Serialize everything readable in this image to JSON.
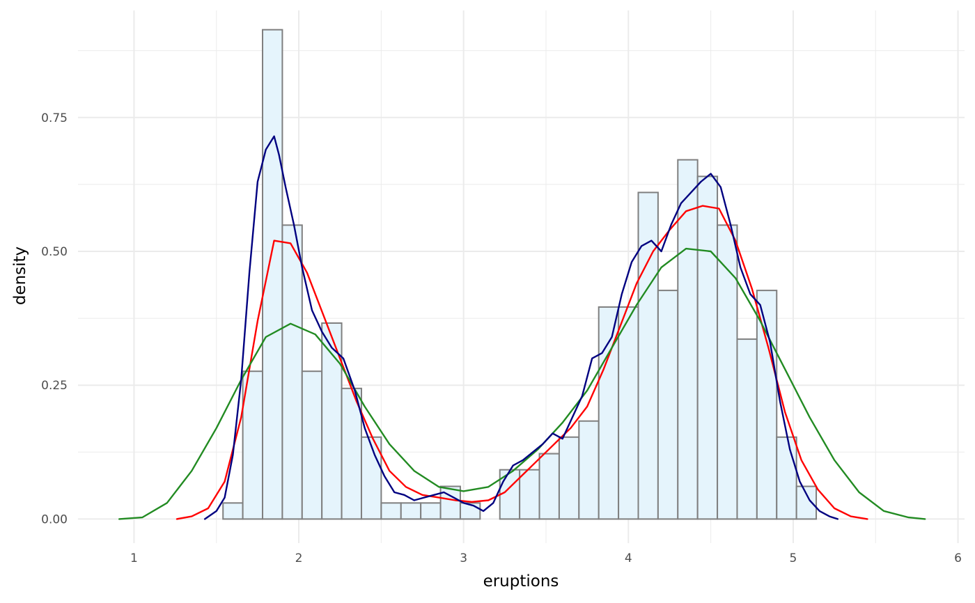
{
  "chart_data": {
    "type": "histogram",
    "xlabel": "eruptions",
    "ylabel": "density",
    "xlim": [
      0.66,
      6.04
    ],
    "ylim": [
      -0.045,
      0.95
    ],
    "x_ticks": [
      1,
      2,
      3,
      4,
      5,
      6
    ],
    "x_tick_labels": [
      "1",
      "2",
      "3",
      "4",
      "5",
      "6"
    ],
    "y_ticks": [
      0,
      0.25,
      0.5,
      0.75
    ],
    "y_tick_labels": [
      "0.00",
      "0.25",
      "0.50",
      "0.75"
    ],
    "grid": true,
    "colors": {
      "bar_fill": "#e5f4fc",
      "bar_stroke": "#7f7f7f",
      "grid": "#ebebeb",
      "red_curve": "#ff0000",
      "green_curve": "#228b22",
      "navy_curve": "#000080"
    },
    "histogram": {
      "bin_width": 0.12,
      "bin_starts": [
        1.54,
        1.66,
        1.78,
        1.9,
        2.02,
        2.14,
        2.26,
        2.38,
        2.5,
        2.62,
        2.74,
        2.86,
        2.98,
        3.1,
        3.22,
        3.34,
        3.46,
        3.58,
        3.7,
        3.82,
        3.94,
        4.06,
        4.18,
        4.3,
        4.42,
        4.54,
        4.66,
        4.78,
        4.9,
        5.02
      ],
      "densities": [
        0.03,
        0.276,
        0.914,
        0.549,
        0.276,
        0.366,
        0.244,
        0.153,
        0.03,
        0.03,
        0.03,
        0.061,
        0.03,
        0.0,
        0.092,
        0.092,
        0.122,
        0.153,
        0.183,
        0.396,
        0.396,
        0.61,
        0.427,
        0.671,
        0.64,
        0.549,
        0.336,
        0.427,
        0.153,
        0.061
      ]
    },
    "series": [
      {
        "color": "red",
        "x": [
          1.26,
          1.35,
          1.45,
          1.55,
          1.65,
          1.75,
          1.85,
          1.95,
          2.05,
          2.15,
          2.25,
          2.35,
          2.45,
          2.55,
          2.65,
          2.75,
          2.85,
          2.95,
          3.05,
          3.15,
          3.25,
          3.35,
          3.45,
          3.55,
          3.65,
          3.75,
          3.85,
          3.95,
          4.05,
          4.15,
          4.25,
          4.35,
          4.45,
          4.55,
          4.65,
          4.75,
          4.85,
          4.95,
          5.05,
          5.15,
          5.25,
          5.35,
          5.45
        ],
        "y": [
          0.0,
          0.005,
          0.02,
          0.07,
          0.19,
          0.37,
          0.52,
          0.515,
          0.46,
          0.38,
          0.3,
          0.22,
          0.15,
          0.09,
          0.06,
          0.045,
          0.04,
          0.035,
          0.032,
          0.035,
          0.05,
          0.08,
          0.11,
          0.14,
          0.17,
          0.21,
          0.28,
          0.36,
          0.44,
          0.5,
          0.54,
          0.575,
          0.585,
          0.58,
          0.52,
          0.43,
          0.32,
          0.2,
          0.11,
          0.055,
          0.02,
          0.005,
          0.0
        ]
      },
      {
        "color": "green",
        "x": [
          0.91,
          1.05,
          1.2,
          1.35,
          1.5,
          1.65,
          1.8,
          1.95,
          2.1,
          2.25,
          2.4,
          2.55,
          2.7,
          2.85,
          3.0,
          3.15,
          3.3,
          3.45,
          3.6,
          3.75,
          3.9,
          4.05,
          4.2,
          4.35,
          4.5,
          4.65,
          4.8,
          4.95,
          5.1,
          5.25,
          5.4,
          5.55,
          5.7,
          5.8
        ],
        "y": [
          0.0,
          0.003,
          0.03,
          0.09,
          0.17,
          0.26,
          0.34,
          0.365,
          0.345,
          0.29,
          0.21,
          0.14,
          0.09,
          0.06,
          0.052,
          0.06,
          0.09,
          0.13,
          0.18,
          0.24,
          0.32,
          0.4,
          0.47,
          0.505,
          0.5,
          0.45,
          0.37,
          0.28,
          0.19,
          0.11,
          0.05,
          0.015,
          0.003,
          0.0
        ]
      },
      {
        "color": "navy",
        "x": [
          1.43,
          1.5,
          1.55,
          1.6,
          1.65,
          1.7,
          1.75,
          1.8,
          1.85,
          1.88,
          1.92,
          1.97,
          2.02,
          2.08,
          2.14,
          2.2,
          2.27,
          2.34,
          2.4,
          2.46,
          2.52,
          2.58,
          2.64,
          2.7,
          2.76,
          2.82,
          2.88,
          2.94,
          3.0,
          3.06,
          3.12,
          3.18,
          3.24,
          3.3,
          3.36,
          3.42,
          3.48,
          3.54,
          3.6,
          3.66,
          3.72,
          3.78,
          3.84,
          3.9,
          3.96,
          4.02,
          4.08,
          4.14,
          4.2,
          4.26,
          4.32,
          4.38,
          4.44,
          4.5,
          4.56,
          4.62,
          4.68,
          4.74,
          4.8,
          4.86,
          4.92,
          4.98,
          5.04,
          5.1,
          5.16,
          5.22,
          5.27
        ],
        "y": [
          0.0,
          0.015,
          0.04,
          0.12,
          0.26,
          0.46,
          0.63,
          0.69,
          0.715,
          0.68,
          0.62,
          0.55,
          0.47,
          0.39,
          0.35,
          0.32,
          0.3,
          0.24,
          0.17,
          0.12,
          0.08,
          0.05,
          0.045,
          0.035,
          0.04,
          0.045,
          0.05,
          0.04,
          0.03,
          0.025,
          0.015,
          0.03,
          0.07,
          0.1,
          0.11,
          0.125,
          0.14,
          0.16,
          0.15,
          0.19,
          0.23,
          0.3,
          0.31,
          0.34,
          0.42,
          0.48,
          0.51,
          0.52,
          0.5,
          0.55,
          0.59,
          0.61,
          0.63,
          0.645,
          0.62,
          0.55,
          0.47,
          0.42,
          0.4,
          0.33,
          0.22,
          0.13,
          0.07,
          0.035,
          0.015,
          0.005,
          0.0
        ]
      }
    ]
  }
}
